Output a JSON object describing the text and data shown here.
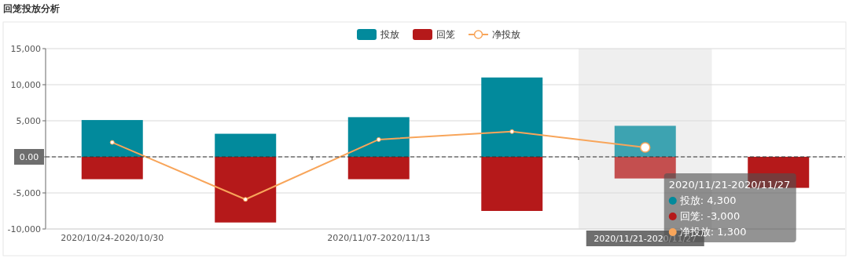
{
  "chart_data": {
    "type": "bar",
    "title": "回笼投放分析",
    "stacked": true,
    "categories": [
      "2020/10/24-2020/10/30",
      null,
      "2020/11/07-2020/11/13",
      null,
      "2020/11/21-2020/11/27",
      null
    ],
    "series": [
      {
        "name": "投放",
        "color": "#028a9c",
        "values": [
          5100,
          3200,
          5500,
          11000,
          4300,
          0
        ]
      },
      {
        "name": "回笼",
        "color": "#b5191a",
        "values": [
          -3100,
          -9100,
          -3100,
          -7500,
          -3000,
          -4300
        ]
      },
      {
        "name": "净投放",
        "type": "line",
        "color": "#f8a55a",
        "values": [
          2000,
          -5900,
          2400,
          3500,
          1300,
          null
        ]
      }
    ],
    "ylim": [
      -10000,
      15000
    ],
    "yticks": [
      {
        "value": -10000,
        "label": "-10,000"
      },
      {
        "value": -5000,
        "label": "-5,000"
      },
      {
        "value": 0,
        "label": null
      },
      {
        "value": 5000,
        "label": "5,000"
      },
      {
        "value": 10000,
        "label": "10,000"
      },
      {
        "value": 15000,
        "label": "15,000"
      }
    ],
    "ref_lines": [
      {
        "axis": "y",
        "value": 0,
        "label": "0.00",
        "color": "#333333",
        "line_style": "dashed"
      }
    ],
    "bands": [
      {
        "axis": "x",
        "from": "2020/11/21-2020/11/27",
        "to": "2020/11/21-2020/11/27",
        "color": "#efefef"
      }
    ],
    "annotations": [
      "2020/11/21-2020/11/27",
      "投放: 4,300",
      "回笼: -3,000",
      "净投放: 1,300"
    ],
    "grid": "y",
    "legend": "top",
    "marker": "circle",
    "line_style": "solid"
  }
}
